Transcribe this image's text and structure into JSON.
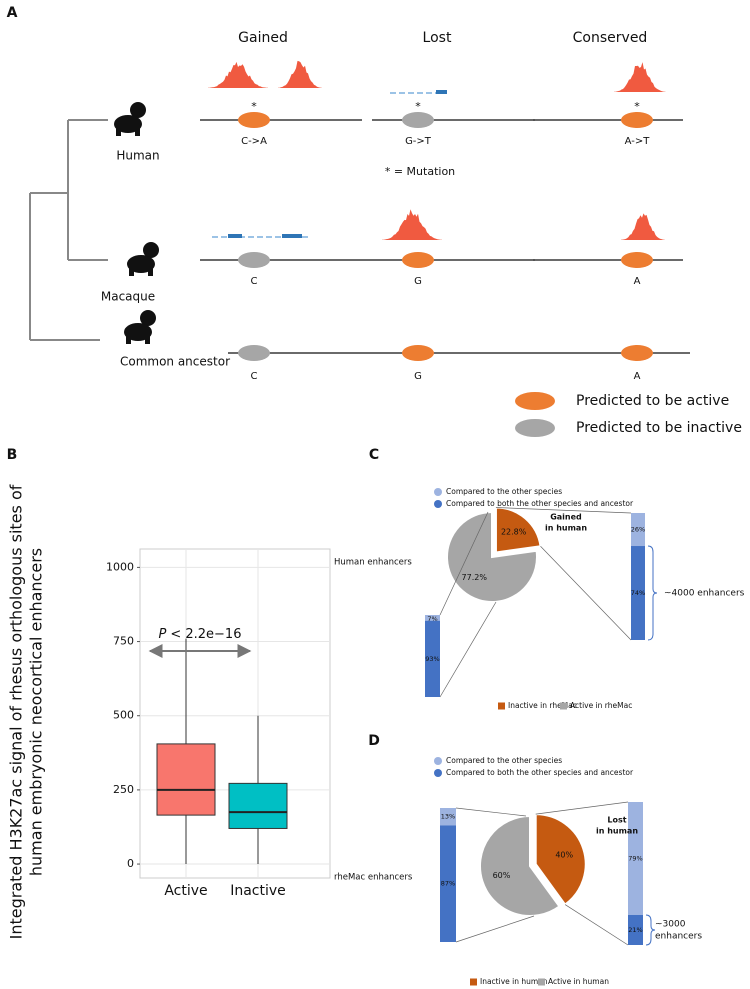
{
  "panel_a": {
    "label": "A",
    "columns": [
      "Gained",
      "Lost",
      "Conserved"
    ],
    "species": [
      "Human",
      "Macaque",
      "Common ancestor"
    ],
    "mutation_marker": "*",
    "human_mutations": [
      "C->A",
      "G->T",
      "A->T"
    ],
    "macaque_bases": [
      "C",
      "G",
      "A"
    ],
    "ancestor_bases": [
      "C",
      "G",
      "A"
    ],
    "mutation_note": "* = Mutation",
    "legend": [
      {
        "name": "Predicted to be active",
        "color": "#ed7d31"
      },
      {
        "name": "Predicted to be inactive",
        "color": "#a6a6a6"
      }
    ]
  },
  "chart_data": [
    {
      "type": "box",
      "label": "B",
      "y_label": [
        "Integrated H3K27ac signal of rhesus orthologous sites of",
        "human embryonic neocortical enhancers"
      ],
      "categories": [
        "Active",
        "Inactive"
      ],
      "boxes": [
        {
          "low": 0,
          "q1": 165,
          "median": 250,
          "q3": 405,
          "high": 760,
          "color": "#f8766d"
        },
        {
          "low": 0,
          "q1": 120,
          "median": 175,
          "q3": 272,
          "high": 500,
          "color": "#00bfc4"
        }
      ],
      "ylim": [
        -47,
        1062
      ],
      "yticks": [
        0,
        250,
        500,
        750,
        1000
      ],
      "grid": true,
      "p_symbol": "P",
      "p_text": "< 2.2e−16",
      "side_labels": [
        "Human enhancers",
        "rheMac enhancers"
      ]
    },
    {
      "type": "pie",
      "label": "C",
      "series": [
        {
          "name": "Compared to the other species",
          "color": "#9db3e0"
        },
        {
          "name": "Compared to both the other species and ancestor",
          "color": "#4472c4"
        }
      ],
      "bars": [
        {
          "values": [
            7,
            93
          ],
          "value_labels": [
            "7%",
            "93%"
          ]
        },
        {
          "values": [
            26,
            74
          ],
          "value_labels": [
            "26%",
            "74%"
          ]
        }
      ],
      "categories": [
        "Inactive in rheMac",
        "Active in rheMac"
      ],
      "values": [
        22.8,
        77.2
      ],
      "value_labels": [
        "22.8%",
        "77.2%"
      ],
      "colors": [
        "#c55a11",
        "#a6a6a6"
      ],
      "callout": [
        "Gained",
        "in human"
      ],
      "bracket_label": [
        "~4000 enhancers"
      ]
    },
    {
      "type": "pie",
      "label": "D",
      "series": [
        {
          "name": "Compared to the other species",
          "color": "#9db3e0"
        },
        {
          "name": "Compared to both the other species and ancestor",
          "color": "#4472c4"
        }
      ],
      "bars": [
        {
          "values": [
            13,
            87
          ],
          "value_labels": [
            "13%",
            "87%"
          ]
        },
        {
          "values": [
            79,
            21
          ],
          "value_labels": [
            "79%",
            "21%"
          ]
        }
      ],
      "categories": [
        "Inactive in human",
        "Active in human"
      ],
      "values": [
        40,
        60
      ],
      "value_labels": [
        "40%",
        "60%"
      ],
      "colors": [
        "#c55a11",
        "#a6a6a6"
      ],
      "callout": [
        "Lost",
        "in human"
      ],
      "bracket_label": [
        "~3000",
        "enhancers"
      ]
    }
  ]
}
